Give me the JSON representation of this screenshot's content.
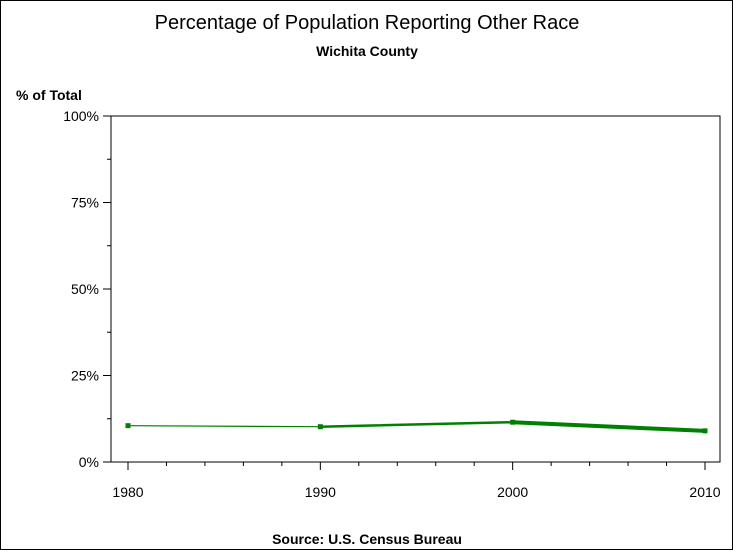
{
  "chart_data": {
    "type": "line",
    "title": "Percentage of Population Reporting Other Race",
    "subtitle": "Wichita County",
    "ylabel": "% of Total",
    "source": "Source: U.S. Census Bureau",
    "x": [
      1980,
      1990,
      2000,
      2010
    ],
    "x_tick_labels": [
      "1980",
      "1990",
      "2000",
      "2010"
    ],
    "y_tick_labels": [
      "0%",
      "25%",
      "50%",
      "75%",
      "100%"
    ],
    "y_ticks": [
      0,
      25,
      50,
      75,
      100
    ],
    "xlim": [
      1980,
      2010
    ],
    "ylim": [
      0,
      100
    ],
    "grid": false,
    "series": [
      {
        "values": [
          10.5,
          10.2,
          11.5,
          9.0
        ],
        "color": "#008000"
      }
    ]
  }
}
